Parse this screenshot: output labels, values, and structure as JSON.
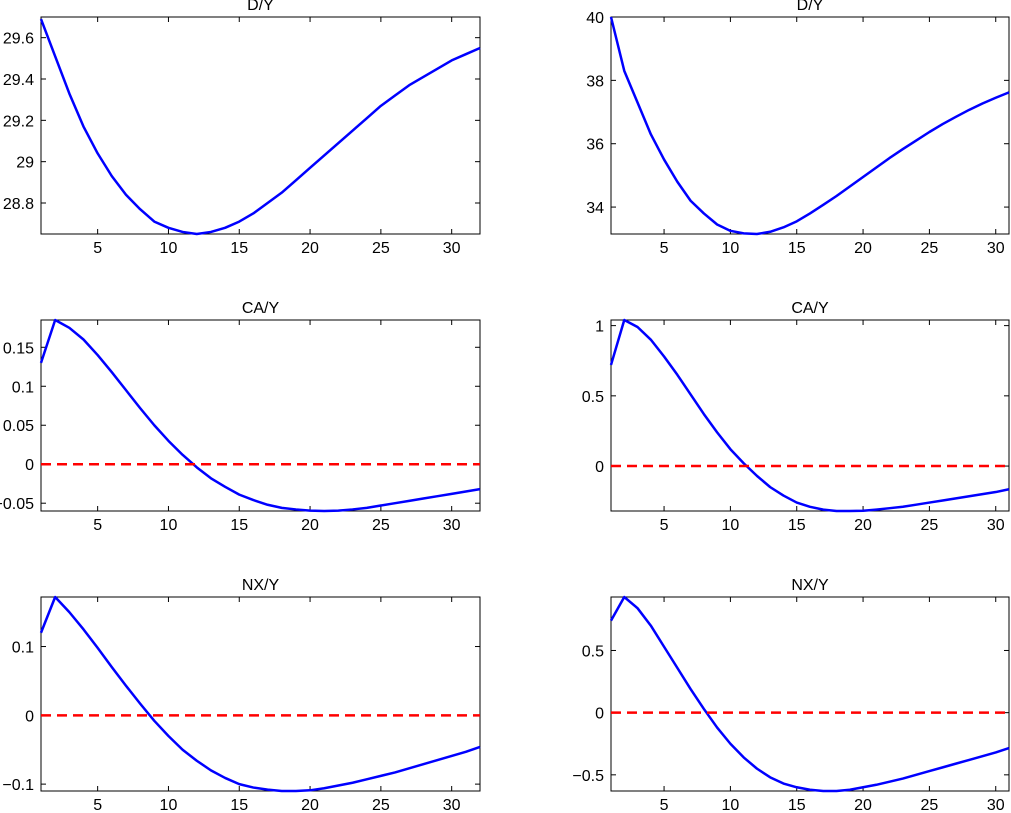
{
  "figure": {
    "rows": 3,
    "cols": 2,
    "colors": {
      "model": "#0000ff",
      "zero_line": "#ff0000",
      "axes": "#000000"
    }
  },
  "chart_data": [
    {
      "type": "line",
      "title": "D/Y",
      "xlabel": "",
      "ylabel": "",
      "xlim": [
        1,
        32
      ],
      "ylim": [
        28.65,
        29.7
      ],
      "xticks": [
        5,
        10,
        15,
        20,
        25,
        30
      ],
      "xticklabels": [
        "5",
        "10",
        "15",
        "20",
        "25",
        "30"
      ],
      "yticks": [
        28.8,
        29.0,
        29.2,
        29.4,
        29.6
      ],
      "yticklabels": [
        "28.8",
        "29",
        "29.2",
        "29.4",
        "29.6"
      ],
      "grid": false,
      "series": [
        {
          "style": "solid",
          "color": "#0000ff",
          "x": [
            1,
            2,
            3,
            4,
            5,
            6,
            7,
            8,
            9,
            10,
            11,
            12,
            13,
            14,
            15,
            16,
            17,
            18,
            19,
            20,
            21,
            22,
            23,
            24,
            25,
            26,
            27,
            28,
            29,
            30,
            31,
            32
          ],
          "y": [
            29.69,
            29.51,
            29.33,
            29.17,
            29.04,
            28.93,
            28.84,
            28.77,
            28.71,
            28.68,
            28.66,
            28.65,
            28.66,
            28.68,
            28.71,
            28.75,
            28.8,
            28.85,
            28.91,
            28.97,
            29.03,
            29.09,
            29.15,
            29.21,
            29.27,
            29.32,
            29.37,
            29.41,
            29.45,
            29.49,
            29.52,
            29.55
          ]
        }
      ]
    },
    {
      "type": "line",
      "title": "D/Y",
      "xlabel": "",
      "ylabel": "",
      "xlim": [
        1,
        31
      ],
      "ylim": [
        33.15,
        40.0
      ],
      "xticks": [
        5,
        10,
        15,
        20,
        25,
        30
      ],
      "xticklabels": [
        "5",
        "10",
        "15",
        "20",
        "25",
        "30"
      ],
      "yticks": [
        34,
        36,
        38,
        40
      ],
      "yticklabels": [
        "34",
        "36",
        "38",
        "40"
      ],
      "grid": false,
      "series": [
        {
          "style": "solid",
          "color": "#0000ff",
          "x": [
            1,
            2,
            3,
            4,
            5,
            6,
            7,
            8,
            9,
            10,
            11,
            12,
            13,
            14,
            15,
            16,
            17,
            18,
            19,
            20,
            21,
            22,
            23,
            24,
            25,
            26,
            27,
            28,
            29,
            30,
            31
          ],
          "y": [
            40.0,
            38.3,
            37.3,
            36.3,
            35.5,
            34.8,
            34.2,
            33.8,
            33.45,
            33.25,
            33.17,
            33.15,
            33.22,
            33.36,
            33.55,
            33.8,
            34.07,
            34.35,
            34.65,
            34.95,
            35.25,
            35.55,
            35.83,
            36.1,
            36.37,
            36.62,
            36.85,
            37.07,
            37.27,
            37.45,
            37.62
          ]
        }
      ]
    },
    {
      "type": "line",
      "title": "CA/Y",
      "xlabel": "",
      "ylabel": "",
      "xlim": [
        1,
        32
      ],
      "ylim": [
        -0.06,
        0.185
      ],
      "xticks": [
        5,
        10,
        15,
        20,
        25,
        30
      ],
      "xticklabels": [
        "5",
        "10",
        "15",
        "20",
        "25",
        "30"
      ],
      "yticks": [
        -0.05,
        0,
        0.05,
        0.1,
        0.15
      ],
      "yticklabels": [
        "−0.05",
        "0",
        "0.05",
        "0.1",
        "0.15"
      ],
      "grid": false,
      "series": [
        {
          "style": "solid",
          "color": "#0000ff",
          "x": [
            1,
            2,
            3,
            4,
            5,
            6,
            7,
            8,
            9,
            10,
            11,
            12,
            13,
            14,
            15,
            16,
            17,
            18,
            19,
            20,
            21,
            22,
            23,
            24,
            25,
            26,
            27,
            28,
            29,
            30,
            31,
            32
          ],
          "y": [
            0.13,
            0.185,
            0.175,
            0.16,
            0.14,
            0.118,
            0.095,
            0.072,
            0.05,
            0.03,
            0.012,
            -0.004,
            -0.018,
            -0.029,
            -0.039,
            -0.046,
            -0.052,
            -0.056,
            -0.058,
            -0.0595,
            -0.06,
            -0.0595,
            -0.058,
            -0.056,
            -0.053,
            -0.05,
            -0.047,
            -0.044,
            -0.041,
            -0.038,
            -0.035,
            -0.032
          ]
        },
        {
          "style": "dashed",
          "color": "#ff0000",
          "x": [
            1,
            32
          ],
          "y": [
            0,
            0
          ]
        }
      ]
    },
    {
      "type": "line",
      "title": "CA/Y",
      "xlabel": "",
      "ylabel": "",
      "xlim": [
        1,
        31
      ],
      "ylim": [
        -0.32,
        1.04
      ],
      "xticks": [
        5,
        10,
        15,
        20,
        25,
        30
      ],
      "xticklabels": [
        "5",
        "10",
        "15",
        "20",
        "25",
        "30"
      ],
      "yticks": [
        0,
        0.5,
        1
      ],
      "yticklabels": [
        "0",
        "0.5",
        "1"
      ],
      "grid": false,
      "series": [
        {
          "style": "solid",
          "color": "#0000ff",
          "x": [
            1,
            2,
            3,
            4,
            5,
            6,
            7,
            8,
            9,
            10,
            11,
            12,
            13,
            14,
            15,
            16,
            17,
            18,
            19,
            20,
            21,
            22,
            23,
            24,
            25,
            26,
            27,
            28,
            29,
            30,
            31
          ],
          "y": [
            0.72,
            1.04,
            0.99,
            0.9,
            0.78,
            0.65,
            0.51,
            0.37,
            0.24,
            0.12,
            0.02,
            -0.07,
            -0.15,
            -0.21,
            -0.26,
            -0.29,
            -0.31,
            -0.32,
            -0.32,
            -0.318,
            -0.31,
            -0.3,
            -0.29,
            -0.275,
            -0.26,
            -0.245,
            -0.23,
            -0.215,
            -0.2,
            -0.185,
            -0.165
          ]
        },
        {
          "style": "dashed",
          "color": "#ff0000",
          "x": [
            1,
            31
          ],
          "y": [
            0,
            0
          ]
        }
      ]
    },
    {
      "type": "line",
      "title": "NX/Y",
      "xlabel": "",
      "ylabel": "",
      "xlim": [
        1,
        32
      ],
      "ylim": [
        -0.11,
        0.172
      ],
      "xticks": [
        5,
        10,
        15,
        20,
        25,
        30
      ],
      "xticklabels": [
        "5",
        "10",
        "15",
        "20",
        "25",
        "30"
      ],
      "yticks": [
        -0.1,
        0,
        0.1
      ],
      "yticklabels": [
        "−0.1",
        "0",
        "0.1"
      ],
      "grid": false,
      "series": [
        {
          "style": "solid",
          "color": "#0000ff",
          "x": [
            1,
            2,
            3,
            4,
            5,
            6,
            7,
            8,
            9,
            10,
            11,
            12,
            13,
            14,
            15,
            16,
            17,
            18,
            19,
            20,
            21,
            22,
            23,
            24,
            25,
            26,
            27,
            28,
            29,
            30,
            31,
            32
          ],
          "y": [
            0.12,
            0.172,
            0.15,
            0.125,
            0.098,
            0.07,
            0.043,
            0.017,
            -0.008,
            -0.03,
            -0.05,
            -0.066,
            -0.08,
            -0.091,
            -0.1,
            -0.105,
            -0.108,
            -0.11,
            -0.11,
            -0.109,
            -0.106,
            -0.102,
            -0.098,
            -0.093,
            -0.088,
            -0.083,
            -0.077,
            -0.071,
            -0.065,
            -0.059,
            -0.053,
            -0.046
          ]
        },
        {
          "style": "dashed",
          "color": "#ff0000",
          "x": [
            1,
            32
          ],
          "y": [
            0,
            0
          ]
        }
      ]
    },
    {
      "type": "line",
      "title": "NX/Y",
      "xlabel": "",
      "ylabel": "",
      "xlim": [
        1,
        31
      ],
      "ylim": [
        -0.63,
        0.93
      ],
      "xticks": [
        5,
        10,
        15,
        20,
        25,
        30
      ],
      "xticklabels": [
        "5",
        "10",
        "15",
        "20",
        "25",
        "30"
      ],
      "yticks": [
        -0.5,
        0,
        0.5
      ],
      "yticklabels": [
        "−0.5",
        "0",
        "0.5"
      ],
      "grid": false,
      "series": [
        {
          "style": "solid",
          "color": "#0000ff",
          "x": [
            1,
            2,
            3,
            4,
            5,
            6,
            7,
            8,
            9,
            10,
            11,
            12,
            13,
            14,
            15,
            16,
            17,
            18,
            19,
            20,
            21,
            22,
            23,
            24,
            25,
            26,
            27,
            28,
            29,
            30,
            31
          ],
          "y": [
            0.74,
            0.93,
            0.84,
            0.7,
            0.53,
            0.36,
            0.19,
            0.03,
            -0.12,
            -0.25,
            -0.36,
            -0.45,
            -0.52,
            -0.57,
            -0.6,
            -0.62,
            -0.63,
            -0.63,
            -0.62,
            -0.6,
            -0.58,
            -0.555,
            -0.53,
            -0.5,
            -0.47,
            -0.44,
            -0.41,
            -0.38,
            -0.35,
            -0.32,
            -0.285
          ]
        },
        {
          "style": "dashed",
          "color": "#ff0000",
          "x": [
            1,
            31
          ],
          "y": [
            0,
            0
          ]
        }
      ]
    }
  ]
}
